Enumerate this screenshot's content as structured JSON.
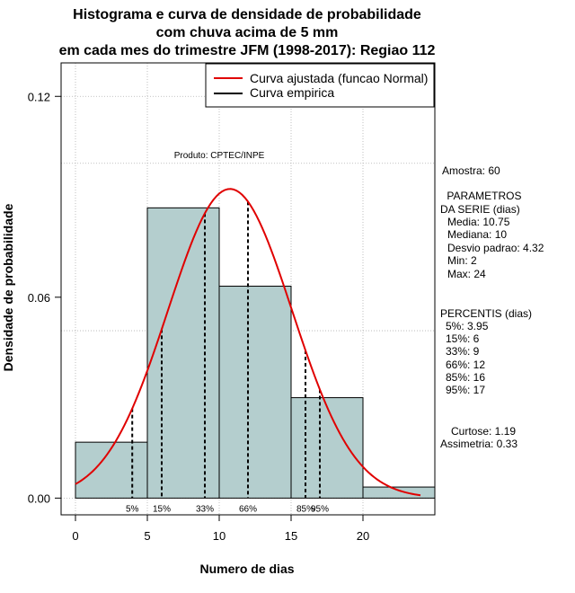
{
  "chart_data": {
    "type": "bar",
    "title_lines": [
      "Histograma e curva de densidade de probabilidade",
      "com chuva acima de 5 mm",
      "em cada mes do trimestre JFM (1998-2017): Regiao 112"
    ],
    "xlabel": "Numero de dias",
    "ylabel": "Densidade de probabilidade",
    "xlim": [
      -1,
      25
    ],
    "ylim": [
      -0.005,
      0.13
    ],
    "x_ticks": [
      0,
      5,
      10,
      15,
      20
    ],
    "y_ticks": [
      0.0,
      0.06,
      0.12
    ],
    "y_tick_labels": [
      "0.00",
      "0.06",
      "0.12"
    ],
    "grid": true,
    "bins": [
      {
        "start": 0,
        "end": 5,
        "density": 0.0167
      },
      {
        "start": 5,
        "end": 10,
        "density": 0.0867
      },
      {
        "start": 10,
        "end": 15,
        "density": 0.0633
      },
      {
        "start": 15,
        "end": 20,
        "density": 0.03
      },
      {
        "start": 20,
        "end": 25,
        "density": 0.0033
      }
    ],
    "bar_color": "#b4cece",
    "curve": {
      "mean": 10.75,
      "sd": 4.32,
      "x_start": 0,
      "x_end": 24,
      "color": "#e00000"
    },
    "percentile_markers": [
      {
        "label": "5%",
        "x": 3.95
      },
      {
        "label": "15%",
        "x": 6
      },
      {
        "label": "33%",
        "x": 9
      },
      {
        "label": "66%",
        "x": 12
      },
      {
        "label": "85%",
        "x": 16
      },
      {
        "label": "95%",
        "x": 17
      }
    ],
    "legend": {
      "position": "top-right",
      "entries": [
        {
          "label": "Curva ajustada (funcao Normal)",
          "color": "#e00000"
        },
        {
          "label": "Curva empirica",
          "color": "#000000"
        }
      ]
    },
    "credit": "Produto: CPTEC/INPE"
  },
  "side_panel": {
    "sample": "Amostra: 60",
    "params_header": [
      " PARAMETROS",
      "DA SERIE (dias)"
    ],
    "params": [
      "Media: 10.75",
      "Mediana: 10",
      "Desvio padrao: 4.32",
      "Min: 2",
      "Max: 24"
    ],
    "percentiles_header": "PERCENTIS (dias)",
    "percentiles": [
      "5%: 3.95",
      "15%: 6",
      "33%: 9",
      "66%: 12",
      "85%: 16",
      "95%: 17"
    ],
    "kurtosis": "Curtose: 1.19",
    "skewness": "Assimetria: 0.33"
  }
}
